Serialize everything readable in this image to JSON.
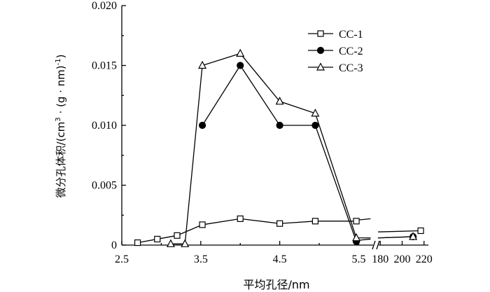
{
  "chart_data": {
    "type": "line",
    "xlabel": "平均孔径/nm",
    "ylabel_main": "微分孔体积/(cm",
    "ylabel_sup1": "3",
    "ylabel_mid": " · (g · nm)",
    "ylabel_sup2": "-1",
    "ylabel_end": ")",
    "ylim": [
      0,
      0.02
    ],
    "yticks": [
      "0",
      "0.005",
      "0.010",
      "0.015",
      "0.020"
    ],
    "xlim_main": [
      2.5,
      5.7
    ],
    "xticks_main": [
      "2.5",
      "3.5",
      "4.5",
      "5.5"
    ],
    "xlim_break": [
      176,
      224
    ],
    "xticks_break": [
      "180",
      "200",
      "220"
    ],
    "axis_break": true,
    "legend_position": "top-right",
    "series": [
      {
        "name": "CC-1",
        "marker": "square",
        "fill": "none",
        "points": [
          [
            2.7,
            0.0002
          ],
          [
            2.95,
            0.0005
          ],
          [
            3.2,
            0.0008
          ],
          [
            3.52,
            0.0017
          ],
          [
            4.0,
            0.0022
          ],
          [
            4.5,
            0.0018
          ],
          [
            4.95,
            0.002
          ],
          [
            5.47,
            0.002
          ]
        ],
        "break_points": [
          [
            217,
            0.0012
          ]
        ],
        "bridge": [
          [
            5.5,
            0.0021
          ],
          [
            5.65,
            0.0022
          ]
        ],
        "bridge_break": [
          [
            178,
            0.0011
          ],
          [
            217,
            0.0012
          ]
        ]
      },
      {
        "name": "CC-2",
        "marker": "circle",
        "fill": "black",
        "points": [
          [
            3.52,
            0.01
          ],
          [
            4.0,
            0.015
          ],
          [
            4.5,
            0.01
          ],
          [
            4.95,
            0.01
          ],
          [
            5.47,
            0.0003
          ]
        ],
        "break_points": [
          [
            210,
            0.0007
          ]
        ],
        "bridge": [
          [
            5.5,
            0.0004
          ],
          [
            5.65,
            0.0005
          ]
        ],
        "bridge_break": [
          [
            178,
            0.0006
          ],
          [
            210,
            0.0007
          ]
        ]
      },
      {
        "name": "CC-3",
        "marker": "triangle",
        "fill": "none",
        "points": [
          [
            3.12,
            0.0001
          ],
          [
            3.3,
            0.0001
          ],
          [
            3.52,
            0.015
          ],
          [
            4.0,
            0.016
          ],
          [
            4.5,
            0.012
          ],
          [
            4.95,
            0.011
          ],
          [
            5.47,
            0.0006
          ]
        ],
        "break_points": [
          [
            210,
            0.0007
          ]
        ],
        "bridge": [
          [
            5.5,
            0.0006
          ],
          [
            5.65,
            0.0006
          ]
        ],
        "bridge_break": [
          [
            178,
            0.0006
          ],
          [
            210,
            0.0007
          ]
        ]
      }
    ]
  }
}
